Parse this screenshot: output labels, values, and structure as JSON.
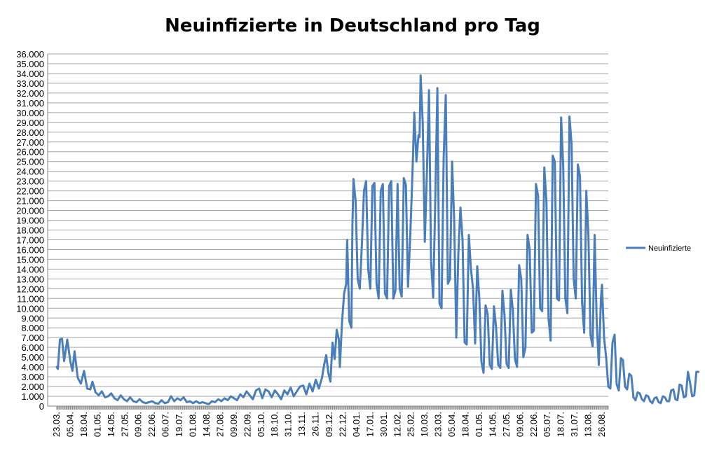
{
  "chart_data": {
    "type": "line",
    "title": "Neuinfizierte in Deutschland pro Tag",
    "xlabel": "",
    "ylabel": "",
    "ylim": [
      0,
      36000
    ],
    "y_tick_labels": [
      "0",
      "1.000",
      "2.000",
      "3.000",
      "4.000",
      "5.000",
      "6.000",
      "7.000",
      "8.000",
      "9.000",
      "10.000",
      "11.000",
      "12.000",
      "13.000",
      "14.000",
      "15.000",
      "16.000",
      "17.000",
      "18.000",
      "19.000",
      "20.000",
      "21.000",
      "22.000",
      "23.000",
      "24.000",
      "25.000",
      "26.000",
      "27.000",
      "28.000",
      "29.000",
      "30.000",
      "31.000",
      "32.000",
      "33.000",
      "34.000",
      "35.000",
      "36.000"
    ],
    "x_tick_labels": [
      "23.03.",
      "05.04.",
      "18.04.",
      "01.05.",
      "14.05.",
      "27.05.",
      "09.06.",
      "22.06.",
      "06.07.",
      "19.07.",
      "01.08.",
      "14.08.",
      "27.08.",
      "09.09.",
      "22.09.",
      "05.10.",
      "18.10.",
      "31.10.",
      "13.11.",
      "26.11.",
      "09.12.",
      "22.12.",
      "04.01.",
      "17.01.",
      "30.01.",
      "12.02.",
      "25.02.",
      "10.03.",
      "23.03.",
      "05.04.",
      "18.04.",
      "01.05.",
      "14.05.",
      "27.05.",
      "09.06.",
      "22.06.",
      "05.07.",
      "18.07.",
      "31.07.",
      "13.08.",
      "26.08."
    ],
    "grid": true,
    "legend_position": "right",
    "series": [
      {
        "name": "Neuinfizierte",
        "color": "#4a7ebb",
        "keypoints": [
          [
            0,
            4000
          ],
          [
            1,
            3800
          ],
          [
            3,
            6800
          ],
          [
            5,
            6900
          ],
          [
            7,
            4600
          ],
          [
            10,
            6800
          ],
          [
            13,
            4500
          ],
          [
            15,
            3600
          ],
          [
            17,
            5600
          ],
          [
            20,
            2900
          ],
          [
            23,
            2300
          ],
          [
            26,
            3600
          ],
          [
            29,
            1800
          ],
          [
            32,
            1700
          ],
          [
            34,
            2500
          ],
          [
            37,
            1400
          ],
          [
            40,
            1100
          ],
          [
            43,
            1500
          ],
          [
            46,
            900
          ],
          [
            49,
            1000
          ],
          [
            52,
            1300
          ],
          [
            55,
            800
          ],
          [
            58,
            600
          ],
          [
            61,
            1100
          ],
          [
            64,
            700
          ],
          [
            67,
            500
          ],
          [
            70,
            900
          ],
          [
            73,
            500
          ],
          [
            76,
            400
          ],
          [
            79,
            700
          ],
          [
            82,
            400
          ],
          [
            85,
            300
          ],
          [
            88,
            400
          ],
          [
            91,
            500
          ],
          [
            94,
            300
          ],
          [
            97,
            250
          ],
          [
            100,
            600
          ],
          [
            103,
            300
          ],
          [
            106,
            400
          ],
          [
            109,
            1000
          ],
          [
            112,
            500
          ],
          [
            115,
            800
          ],
          [
            118,
            600
          ],
          [
            121,
            900
          ],
          [
            124,
            400
          ],
          [
            127,
            500
          ],
          [
            130,
            300
          ],
          [
            133,
            500
          ],
          [
            136,
            300
          ],
          [
            139,
            400
          ],
          [
            142,
            300
          ],
          [
            145,
            200
          ],
          [
            148,
            500
          ],
          [
            151,
            400
          ],
          [
            154,
            700
          ],
          [
            157,
            500
          ],
          [
            160,
            800
          ],
          [
            163,
            600
          ],
          [
            166,
            1000
          ],
          [
            169,
            800
          ],
          [
            172,
            600
          ],
          [
            175,
            1200
          ],
          [
            178,
            900
          ],
          [
            181,
            1500
          ],
          [
            184,
            1100
          ],
          [
            187,
            700
          ],
          [
            190,
            1600
          ],
          [
            193,
            1800
          ],
          [
            196,
            800
          ],
          [
            199,
            1700
          ],
          [
            202,
            1500
          ],
          [
            205,
            900
          ],
          [
            208,
            1600
          ],
          [
            211,
            1200
          ],
          [
            214,
            700
          ],
          [
            217,
            1600
          ],
          [
            220,
            1200
          ],
          [
            223,
            1900
          ],
          [
            226,
            1000
          ],
          [
            229,
            1500
          ],
          [
            232,
            2000
          ],
          [
            235,
            2100
          ],
          [
            238,
            1200
          ],
          [
            241,
            2300
          ],
          [
            244,
            1500
          ],
          [
            247,
            2700
          ],
          [
            250,
            1800
          ],
          [
            253,
            2900
          ],
          [
            255,
            4200
          ],
          [
            257,
            5200
          ],
          [
            259,
            3400
          ],
          [
            261,
            2500
          ],
          [
            263,
            6500
          ],
          [
            265,
            4800
          ],
          [
            267,
            7800
          ],
          [
            269,
            6800
          ],
          [
            270,
            4000
          ],
          [
            272,
            8500
          ],
          [
            274,
            11500
          ],
          [
            276,
            12500
          ],
          [
            277,
            17000
          ],
          [
            279,
            8700
          ],
          [
            281,
            8000
          ],
          [
            282,
            18500
          ],
          [
            283,
            23200
          ],
          [
            285,
            21000
          ],
          [
            287,
            13000
          ],
          [
            289,
            12000
          ],
          [
            291,
            16500
          ],
          [
            293,
            22000
          ],
          [
            295,
            23000
          ],
          [
            297,
            14000
          ],
          [
            299,
            12000
          ],
          [
            301,
            22500
          ],
          [
            303,
            22800
          ],
          [
            305,
            12500
          ],
          [
            307,
            11000
          ],
          [
            309,
            22000
          ],
          [
            311,
            22700
          ],
          [
            313,
            11500
          ],
          [
            315,
            11000
          ],
          [
            317,
            22500
          ],
          [
            319,
            23000
          ],
          [
            321,
            11000
          ],
          [
            323,
            11800
          ],
          [
            325,
            22700
          ],
          [
            327,
            12000
          ],
          [
            329,
            11200
          ],
          [
            331,
            23300
          ],
          [
            333,
            22600
          ],
          [
            335,
            12200
          ],
          [
            337,
            17000
          ],
          [
            339,
            23000
          ],
          [
            341,
            30000
          ],
          [
            343,
            25000
          ],
          [
            345,
            27700
          ],
          [
            346,
            27500
          ],
          [
            347,
            33800
          ],
          [
            349,
            29000
          ],
          [
            351,
            16800
          ],
          [
            353,
            24000
          ],
          [
            355,
            32300
          ],
          [
            357,
            14800
          ],
          [
            359,
            11100
          ],
          [
            361,
            21000
          ],
          [
            363,
            32500
          ],
          [
            365,
            10500
          ],
          [
            367,
            10000
          ],
          [
            369,
            25500
          ],
          [
            371,
            31800
          ],
          [
            373,
            12500
          ],
          [
            375,
            13000
          ],
          [
            377,
            25000
          ],
          [
            379,
            19000
          ],
          [
            381,
            7000
          ],
          [
            383,
            15500
          ],
          [
            385,
            20300
          ],
          [
            387,
            17000
          ],
          [
            389,
            6500
          ],
          [
            391,
            6300
          ],
          [
            393,
            17500
          ],
          [
            395,
            14000
          ],
          [
            397,
            12000
          ],
          [
            399,
            6400
          ],
          [
            401,
            14300
          ],
          [
            403,
            11000
          ],
          [
            405,
            4500
          ],
          [
            407,
            3400
          ],
          [
            409,
            10300
          ],
          [
            411,
            9400
          ],
          [
            413,
            4200
          ],
          [
            415,
            3800
          ],
          [
            417,
            10200
          ],
          [
            419,
            8000
          ],
          [
            421,
            4200
          ],
          [
            423,
            3900
          ],
          [
            425,
            11800
          ],
          [
            427,
            9300
          ],
          [
            429,
            4300
          ],
          [
            431,
            3900
          ],
          [
            433,
            11900
          ],
          [
            435,
            9800
          ],
          [
            437,
            4800
          ],
          [
            439,
            4000
          ],
          [
            441,
            14400
          ],
          [
            443,
            13000
          ],
          [
            445,
            5000
          ],
          [
            447,
            6000
          ],
          [
            449,
            17500
          ],
          [
            451,
            16000
          ],
          [
            453,
            7500
          ],
          [
            455,
            7700
          ],
          [
            457,
            22700
          ],
          [
            459,
            21500
          ],
          [
            461,
            10000
          ],
          [
            463,
            9700
          ],
          [
            465,
            24400
          ],
          [
            467,
            21000
          ],
          [
            469,
            9000
          ],
          [
            471,
            6700
          ],
          [
            473,
            25600
          ],
          [
            475,
            25000
          ],
          [
            477,
            11000
          ],
          [
            479,
            10800
          ],
          [
            481,
            29500
          ],
          [
            483,
            24500
          ],
          [
            485,
            11000
          ],
          [
            487,
            9500
          ],
          [
            489,
            29600
          ],
          [
            491,
            26800
          ],
          [
            493,
            13000
          ],
          [
            495,
            11000
          ],
          [
            497,
            24700
          ],
          [
            499,
            23500
          ],
          [
            501,
            10600
          ],
          [
            503,
            7500
          ],
          [
            505,
            22000
          ],
          [
            507,
            17500
          ],
          [
            509,
            7300
          ],
          [
            511,
            6100
          ],
          [
            513,
            17500
          ],
          [
            515,
            8500
          ],
          [
            517,
            4200
          ],
          [
            519,
            11000
          ],
          [
            520,
            12400
          ],
          [
            522,
            7000
          ],
          [
            524,
            4900
          ],
          [
            526,
            2000
          ],
          [
            528,
            1800
          ],
          [
            530,
            6500
          ],
          [
            532,
            7300
          ],
          [
            534,
            2200
          ],
          [
            536,
            1600
          ],
          [
            538,
            4900
          ],
          [
            540,
            4700
          ],
          [
            542,
            2000
          ],
          [
            544,
            1700
          ],
          [
            546,
            3300
          ],
          [
            548,
            3100
          ],
          [
            550,
            900
          ],
          [
            552,
            600
          ],
          [
            554,
            1400
          ],
          [
            556,
            1300
          ],
          [
            558,
            700
          ],
          [
            560,
            500
          ],
          [
            562,
            1100
          ],
          [
            564,
            1000
          ],
          [
            566,
            500
          ],
          [
            568,
            300
          ],
          [
            570,
            800
          ],
          [
            572,
            900
          ],
          [
            574,
            400
          ],
          [
            576,
            300
          ],
          [
            578,
            1000
          ],
          [
            580,
            900
          ],
          [
            582,
            500
          ],
          [
            584,
            500
          ],
          [
            586,
            1600
          ],
          [
            588,
            1700
          ],
          [
            590,
            700
          ],
          [
            592,
            600
          ],
          [
            594,
            2200
          ],
          [
            596,
            2100
          ],
          [
            598,
            900
          ],
          [
            600,
            1000
          ],
          [
            602,
            3500
          ],
          [
            604,
            2400
          ],
          [
            606,
            1000
          ],
          [
            608,
            1100
          ],
          [
            610,
            3500
          ],
          [
            612,
            3500
          ]
        ]
      }
    ]
  }
}
